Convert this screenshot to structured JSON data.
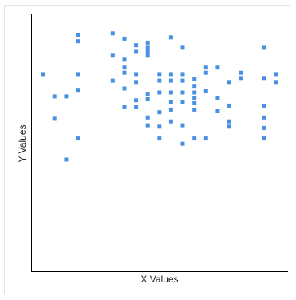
{
  "chart_data": {
    "type": "scatter",
    "title": "",
    "xlabel": "X Values",
    "ylabel": "Y Values",
    "xlim": [
      0,
      21
    ],
    "ylim": [
      0,
      19
    ],
    "grid": false,
    "legend": "none",
    "marker_color": "#4a90e2",
    "series": [
      {
        "points": [
          [
            1,
            15
          ],
          [
            2,
            13.3
          ],
          [
            2,
            11.6
          ],
          [
            3,
            13.3
          ],
          [
            3,
            8.5
          ],
          [
            4,
            18
          ],
          [
            4,
            17.5
          ],
          [
            4,
            15
          ],
          [
            4,
            13.8
          ],
          [
            4,
            10.1
          ],
          [
            7,
            18.1
          ],
          [
            7,
            16.4
          ],
          [
            7,
            14.5
          ],
          [
            8,
            17.7
          ],
          [
            8,
            16.1
          ],
          [
            8,
            15.5
          ],
          [
            8,
            15.1
          ],
          [
            8,
            13.9
          ],
          [
            8,
            12.5
          ],
          [
            9,
            17.2
          ],
          [
            9,
            16.7
          ],
          [
            9,
            15
          ],
          [
            9,
            14.4
          ],
          [
            9,
            13
          ],
          [
            9,
            12.5
          ],
          [
            10,
            17.4
          ],
          [
            10,
            17
          ],
          [
            10,
            16.7
          ],
          [
            10,
            16.4
          ],
          [
            10,
            13.5
          ],
          [
            10,
            13.1
          ],
          [
            10,
            11.7
          ],
          [
            10,
            11.1
          ],
          [
            11,
            15
          ],
          [
            11,
            14.5
          ],
          [
            11,
            13.6
          ],
          [
            11,
            12.1
          ],
          [
            11,
            11
          ],
          [
            11,
            10.1
          ],
          [
            12,
            17.8
          ],
          [
            12,
            15
          ],
          [
            12,
            14.5
          ],
          [
            12,
            13.6
          ],
          [
            12,
            12.9
          ],
          [
            12,
            12.3
          ],
          [
            12,
            11.4
          ],
          [
            13,
            17
          ],
          [
            13,
            15
          ],
          [
            13,
            14.5
          ],
          [
            13,
            13.6
          ],
          [
            13,
            12.9
          ],
          [
            13,
            11.1
          ],
          [
            13,
            9.7
          ],
          [
            14,
            14.6
          ],
          [
            14,
            14.1
          ],
          [
            14,
            13.6
          ],
          [
            14,
            13.2
          ],
          [
            14,
            12.8
          ],
          [
            14,
            12.3
          ],
          [
            14,
            10.1
          ],
          [
            15,
            15.5
          ],
          [
            15,
            15.1
          ],
          [
            15,
            13.7
          ],
          [
            15,
            10.1
          ],
          [
            16,
            15.5
          ],
          [
            16,
            13.2
          ],
          [
            16,
            12.2
          ],
          [
            17,
            14.4
          ],
          [
            17,
            12.6
          ],
          [
            17,
            11.4
          ],
          [
            17,
            11
          ],
          [
            18,
            15.1
          ],
          [
            18,
            14.7
          ],
          [
            20,
            17
          ],
          [
            20,
            14.7
          ],
          [
            20,
            12.6
          ],
          [
            20,
            11.7
          ],
          [
            20,
            10.9
          ],
          [
            20,
            10.1
          ],
          [
            21,
            15
          ],
          [
            21,
            14.4
          ]
        ]
      }
    ]
  }
}
